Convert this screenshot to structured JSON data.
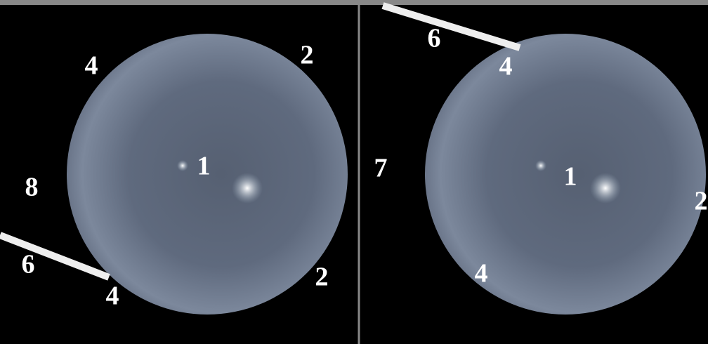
{
  "panels": [
    {
      "labels": [
        "4",
        "2",
        "1",
        "8",
        "6",
        "4",
        "2"
      ]
    },
    {
      "labels": [
        "6",
        "4",
        "7",
        "1",
        "2",
        "4"
      ]
    }
  ]
}
